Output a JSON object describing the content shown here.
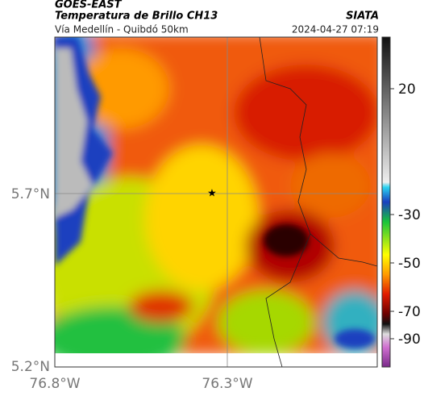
{
  "header": {
    "title": "GOES-EAST",
    "subtitle": "Temperatura de Brillo CH13",
    "route": "Vía Medellín - Quibdó 50km",
    "source": "SIATA",
    "datetime": "2024-04-27 07:19"
  },
  "axes": {
    "lat_labels": [
      "5.7°N",
      "5.2°N"
    ],
    "lon_labels": [
      "76.8°W",
      "76.3°W"
    ]
  },
  "colorbar": {
    "ticks": [
      20,
      -30,
      -50,
      -70,
      -90
    ]
  }
}
